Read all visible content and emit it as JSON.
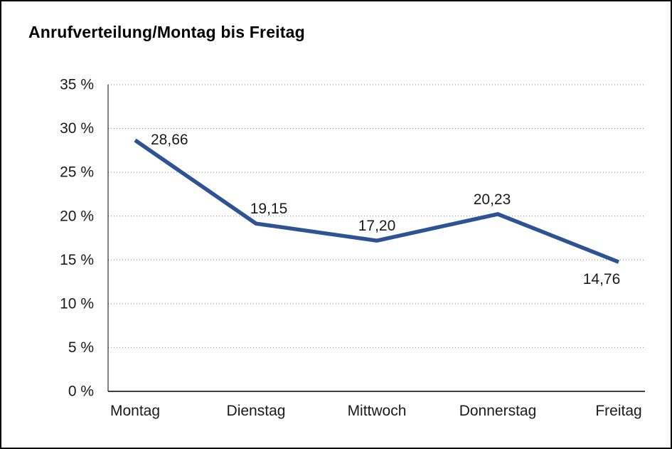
{
  "chart_data": {
    "type": "line",
    "title": "Anrufverteilung/Montag bis Freitag",
    "categories": [
      "Montag",
      "Dienstag",
      "Mittwoch",
      "Donnerstag",
      "Freitag"
    ],
    "values": [
      28.66,
      19.15,
      17.2,
      20.23,
      14.76
    ],
    "value_labels": [
      "28,66",
      "19,15",
      "17,20",
      "20,23",
      "14,76"
    ],
    "xlabel": "",
    "ylabel": "",
    "ylim": [
      0,
      35
    ],
    "ytick_step": 5,
    "ytick_labels": [
      "0 %",
      "5 %",
      "10 %",
      "15 %",
      "20 %",
      "25 %",
      "30 %",
      "35 %"
    ],
    "grid": "dotted-horizontal",
    "legend": "none",
    "line_color": "#2e5395",
    "axis_color": "#000000",
    "grid_color": "#8a8a8a",
    "label_color": "#1a1a1a"
  }
}
